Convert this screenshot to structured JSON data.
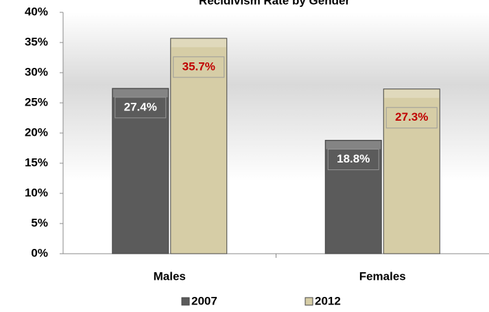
{
  "chart_data": {
    "type": "bar",
    "title": "Recidivism Rate by Gender",
    "categories": [
      "Males",
      "Females"
    ],
    "series": [
      {
        "name": "2007",
        "color": "#5b5b5b",
        "label_color": "#ffffff",
        "values": [
          27.4,
          18.8
        ],
        "value_labels": [
          "27.4%",
          "18.8%"
        ]
      },
      {
        "name": "2012",
        "color": "#d6cda6",
        "label_color": "#c00000",
        "values": [
          35.7,
          27.3
        ],
        "value_labels": [
          "35.7%",
          "27.3%"
        ]
      }
    ],
    "ylim": [
      0,
      40
    ],
    "yticks": [
      {
        "value": 0,
        "label": "0%"
      },
      {
        "value": 5,
        "label": "5%"
      },
      {
        "value": 10,
        "label": "10%"
      },
      {
        "value": 15,
        "label": "15%"
      },
      {
        "value": 20,
        "label": "20%"
      },
      {
        "value": 25,
        "label": "25%"
      },
      {
        "value": 30,
        "label": "30%"
      },
      {
        "value": 35,
        "label": "35%"
      },
      {
        "value": 40,
        "label": "40%"
      }
    ]
  }
}
